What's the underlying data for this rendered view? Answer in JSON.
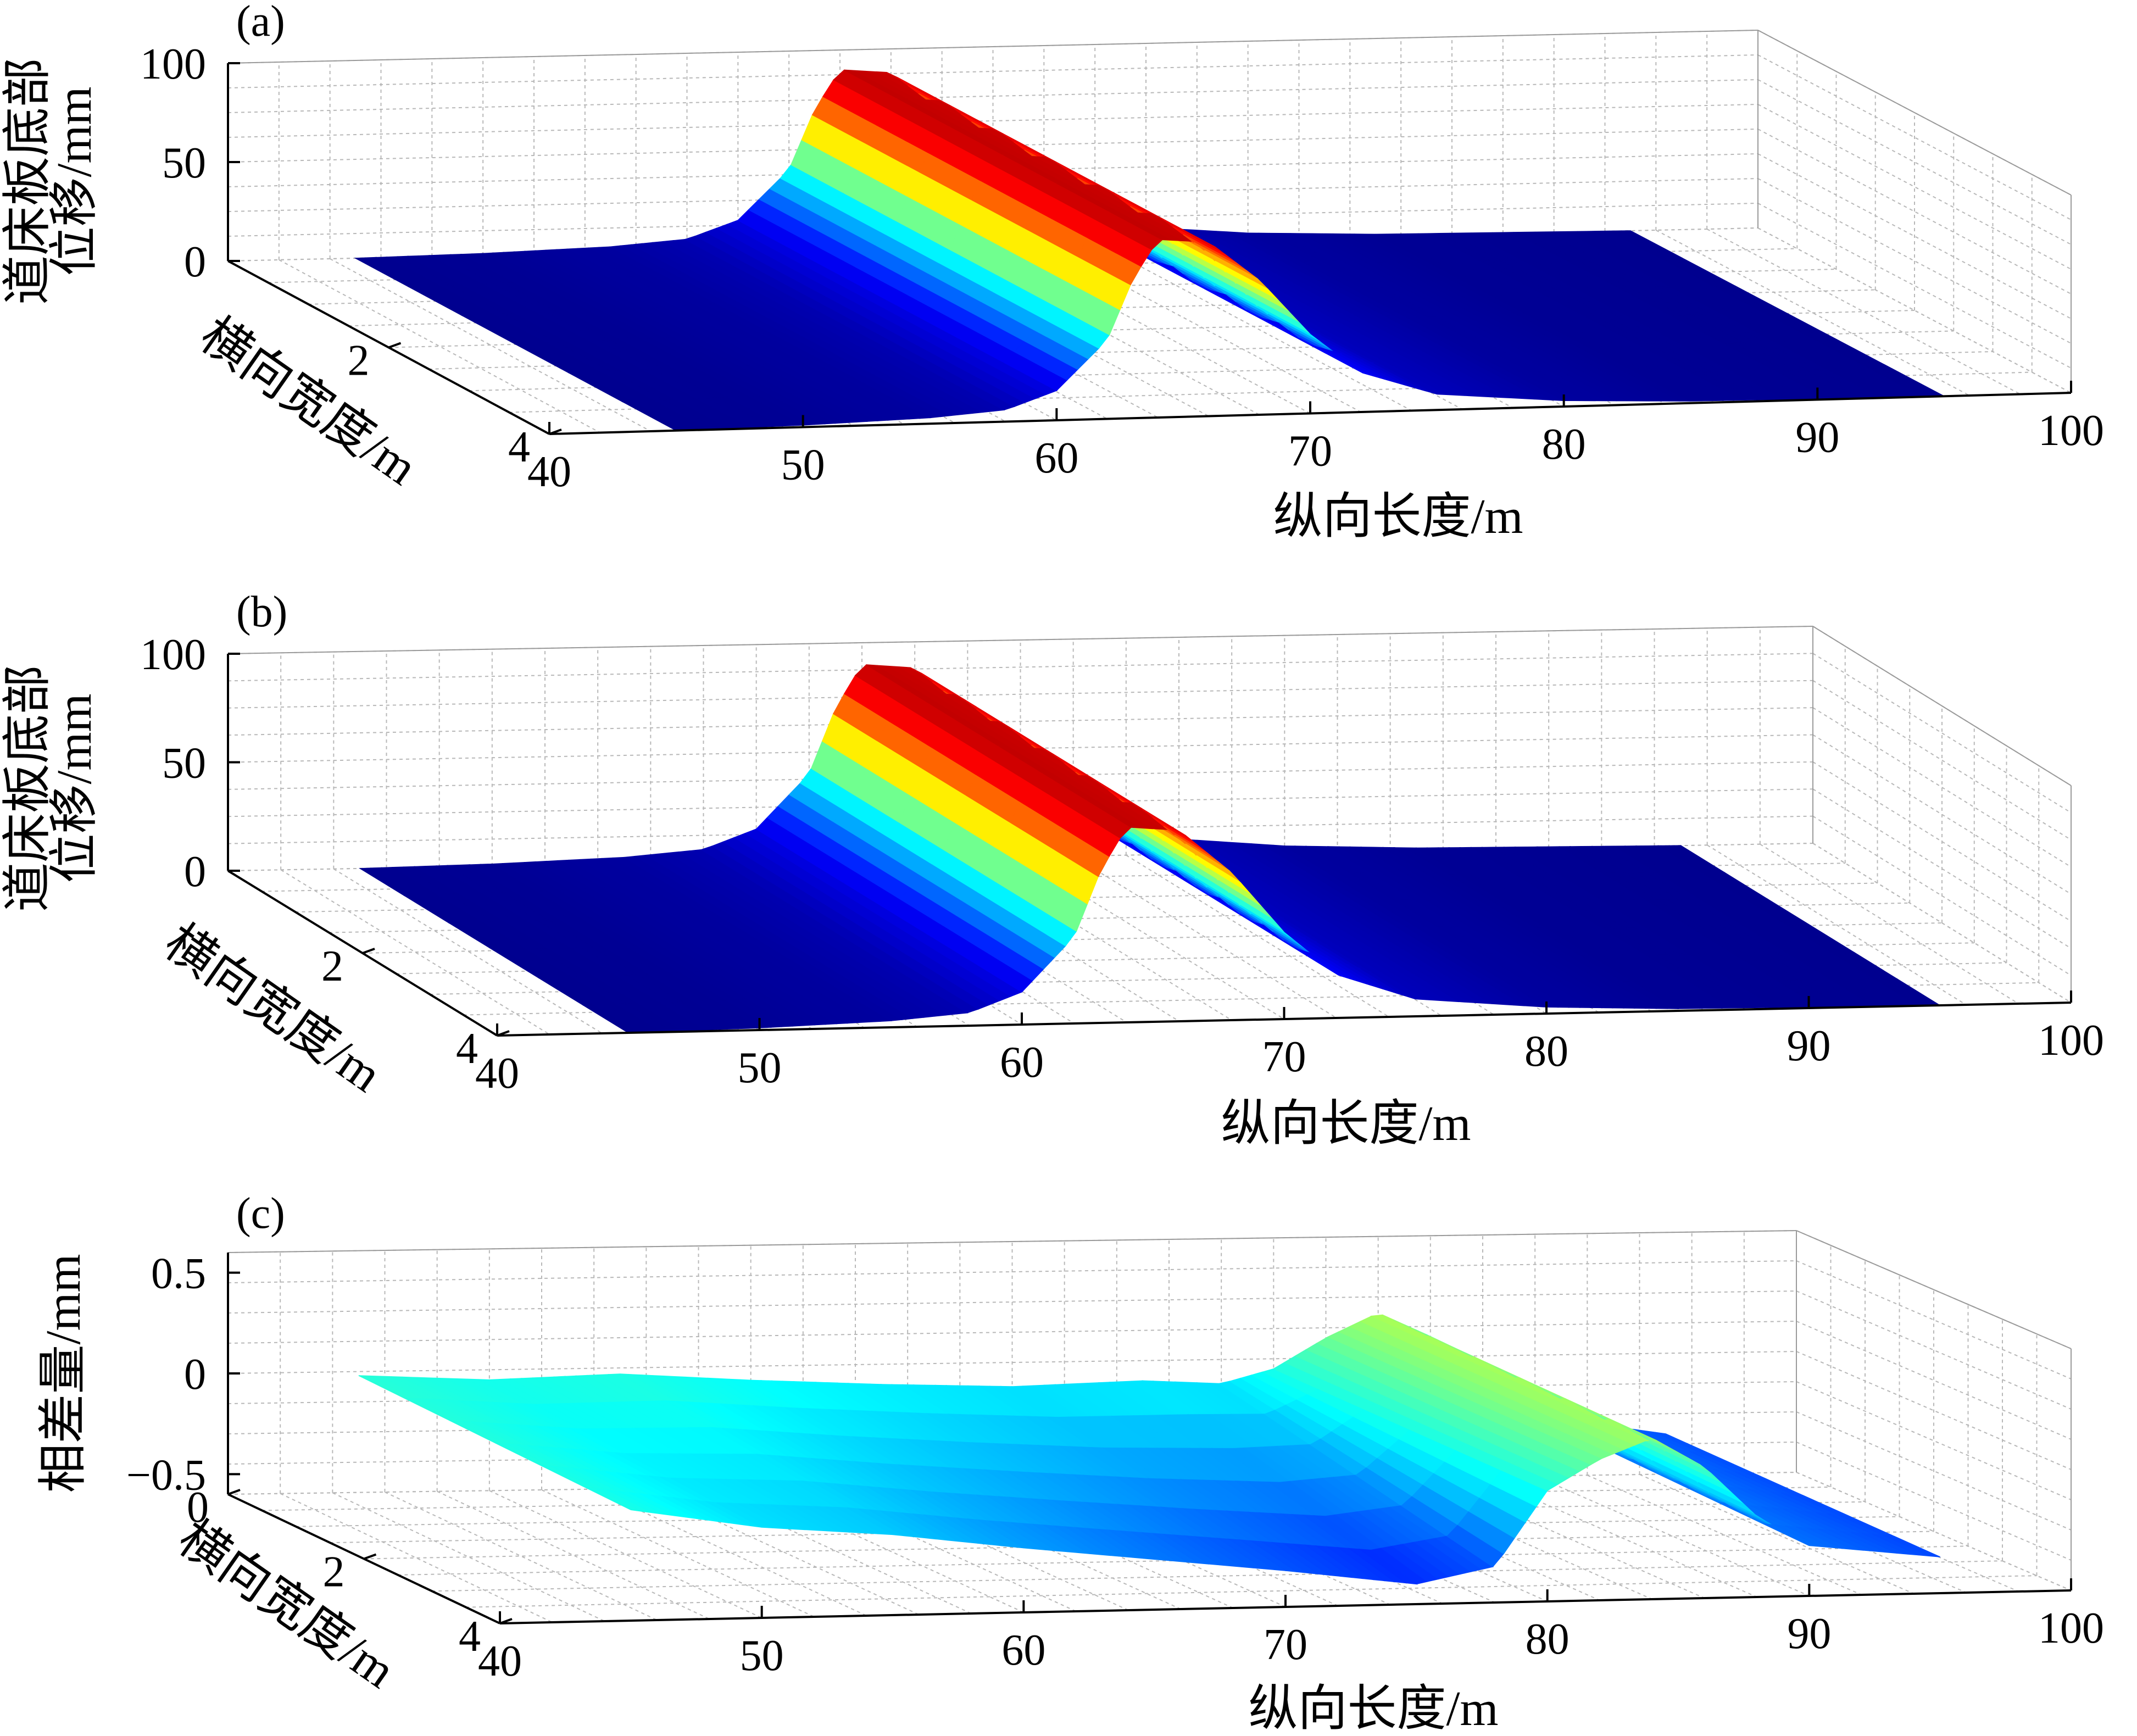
{
  "colormap": [
    "#00008f",
    "#0000ff",
    "#00ffff",
    "#ffff00",
    "#ff0000",
    "#800000"
  ],
  "chart_data": [
    {
      "type": "surface",
      "panel_label": "(a)",
      "title": "",
      "xlabel": "纵向长度/m",
      "ylabel": "横向宽度/m",
      "zlabel_lines": [
        "道床板底部",
        "位移/mm"
      ],
      "xlim": [
        40,
        100
      ],
      "ylim": [
        0,
        4
      ],
      "zlim": [
        0,
        100
      ],
      "x_ticks": [
        "40",
        "50",
        "60",
        "70",
        "80",
        "90",
        "100"
      ],
      "y_ticks": [
        "2",
        "4"
      ],
      "z_ticks": [
        "0",
        "50",
        "100"
      ],
      "grid": true,
      "surface_extent": {
        "x": [
          45,
          95
        ],
        "y": [
          0,
          4
        ]
      },
      "profile_along_x": {
        "x": [
          45,
          50,
          55,
          58,
          60,
          62,
          63,
          64,
          66,
          68,
          70,
          72,
          75,
          80,
          85,
          90,
          95
        ],
        "z": [
          0,
          1,
          3,
          6,
          15,
          40,
          70,
          90,
          88,
          68,
          40,
          20,
          8,
          3,
          1,
          0.5,
          0
        ]
      }
    },
    {
      "type": "surface",
      "panel_label": "(b)",
      "title": "",
      "xlabel": "纵向长度/m",
      "ylabel": "横向宽度/m",
      "zlabel_lines": [
        "道床板底部",
        "位移/mm"
      ],
      "xlim": [
        40,
        100
      ],
      "ylim": [
        0,
        4
      ],
      "zlim": [
        0,
        100
      ],
      "x_ticks": [
        "40",
        "50",
        "60",
        "70",
        "80",
        "90",
        "100"
      ],
      "y_ticks": [
        "2",
        "4"
      ],
      "z_ticks": [
        "0",
        "50",
        "100"
      ],
      "grid": true,
      "surface_extent": {
        "x": [
          45,
          95
        ],
        "y": [
          0,
          4
        ]
      },
      "profile_along_x": {
        "x": [
          45,
          50,
          55,
          58,
          60,
          62,
          63,
          64,
          66,
          68,
          70,
          72,
          75,
          80,
          85,
          90,
          95
        ],
        "z": [
          0,
          1,
          3,
          6,
          15,
          40,
          70,
          90,
          88,
          68,
          40,
          20,
          8,
          3,
          1,
          0.5,
          0
        ]
      }
    },
    {
      "type": "surface",
      "panel_label": "(c)",
      "title": "",
      "xlabel": "纵向长度/m",
      "ylabel": "横向宽度/m",
      "zlabel_lines": [
        "相差量/mm"
      ],
      "xlim": [
        40,
        100
      ],
      "ylim": [
        0,
        4
      ],
      "zlim": [
        -0.6,
        0.6
      ],
      "x_ticks": [
        "40",
        "50",
        "60",
        "70",
        "80",
        "90",
        "100"
      ],
      "y_ticks": [
        "0",
        "2",
        "4"
      ],
      "z_ticks": [
        "−0.5",
        "0",
        "0.5"
      ],
      "grid": true,
      "surface_extent": {
        "x": [
          45,
          95
        ],
        "y": [
          0,
          4
        ]
      },
      "profile_along_x": {
        "x": [
          45,
          50,
          55,
          60,
          65,
          70,
          75,
          78,
          80,
          82,
          84,
          86,
          88,
          90,
          95
        ],
        "z_y0": [
          -0.02,
          -0.05,
          -0.03,
          -0.07,
          -0.1,
          -0.12,
          -0.1,
          -0.12,
          -0.05,
          0.1,
          0.22,
          0.1,
          -0.15,
          -0.3,
          -0.4
        ],
        "z_y4": [
          -0.05,
          -0.15,
          -0.2,
          -0.28,
          -0.35,
          -0.42,
          -0.5,
          -0.42,
          -0.05,
          0.1,
          0.2,
          0.05,
          -0.2,
          -0.35,
          -0.42
        ]
      }
    }
  ]
}
